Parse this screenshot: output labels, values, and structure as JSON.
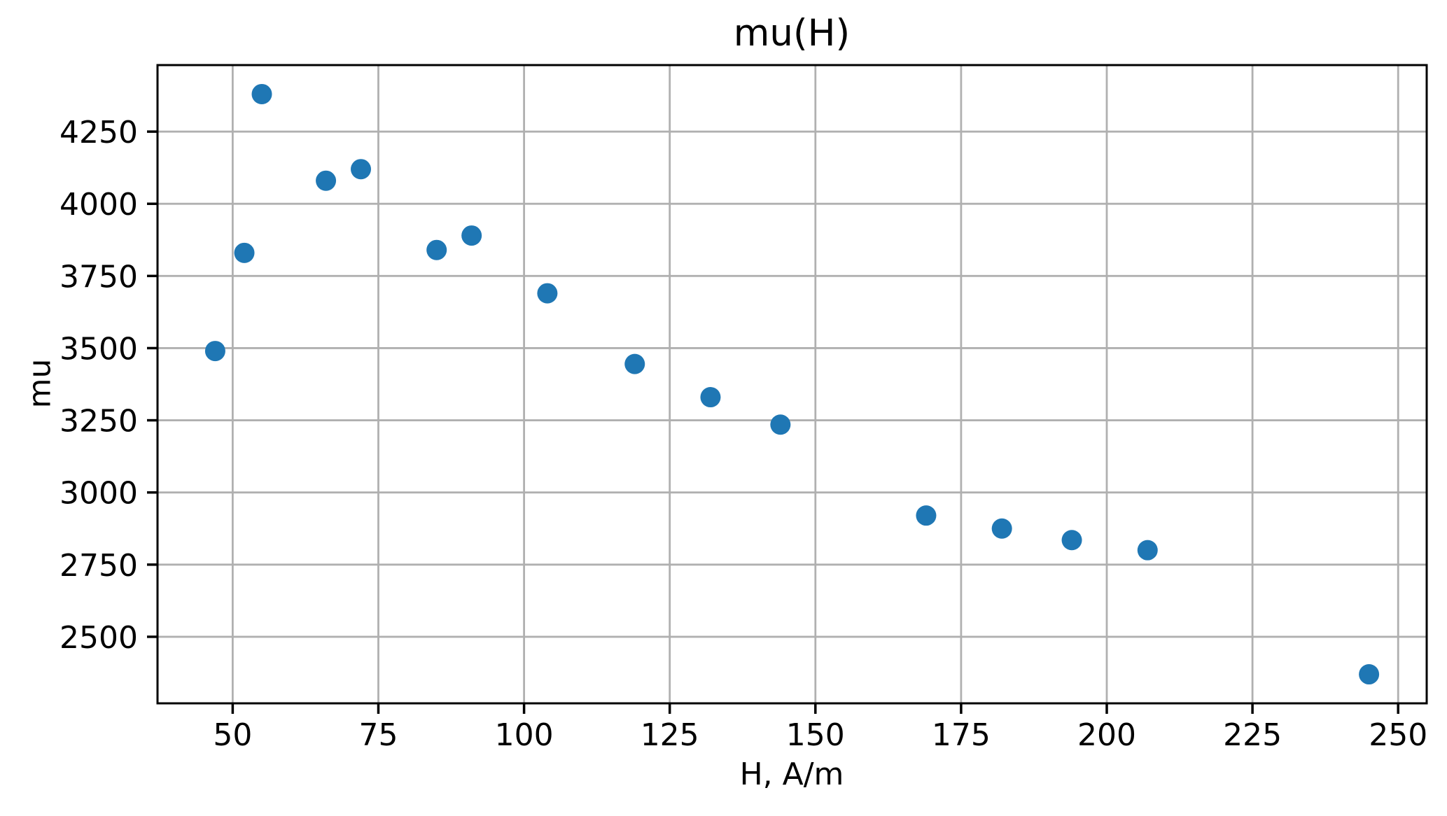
{
  "chart_data": {
    "type": "scatter",
    "title": "mu(H)",
    "xlabel": "H, A/m",
    "ylabel": "mu",
    "x": [
      47,
      52,
      55,
      66,
      72,
      85,
      91,
      104,
      119,
      132,
      144,
      169,
      182,
      194,
      207,
      245
    ],
    "y": [
      3490,
      3830,
      4380,
      4080,
      4120,
      3840,
      3890,
      3690,
      3445,
      3330,
      3235,
      2920,
      2875,
      2835,
      2800,
      2370
    ],
    "xticks": [
      50,
      75,
      100,
      125,
      150,
      175,
      200,
      225,
      250
    ],
    "yticks": [
      2500,
      2750,
      3000,
      3250,
      3500,
      3750,
      4000,
      4250
    ],
    "xlim": [
      37.1,
      254.9
    ],
    "ylim": [
      2269.5,
      4480.5
    ],
    "grid": true,
    "legend_position": "none",
    "marker_color": "#1f77b4",
    "grid_color": "#b0b0b0",
    "axis_color": "#000000",
    "background_color": "#ffffff"
  }
}
